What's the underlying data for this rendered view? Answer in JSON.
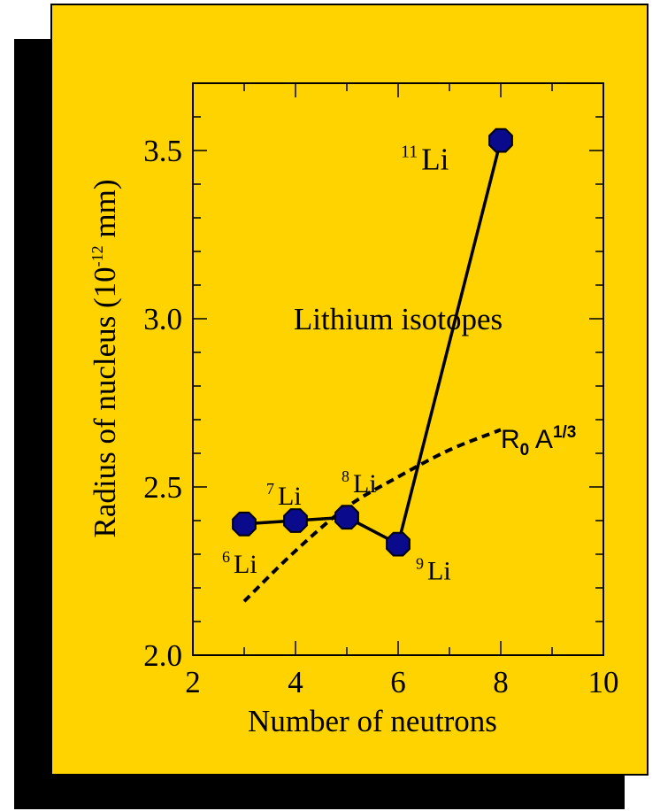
{
  "colors": {
    "background": "#ffd300",
    "marker": "#0a0a8c",
    "line": "#000000",
    "shadow": "#000000"
  },
  "chart_data": {
    "type": "line",
    "title": "Lithium isotopes",
    "xlabel": "Number of neutrons",
    "ylabel": "Radius of nucleus (10",
    "ylabel_exp": "-12",
    "ylabel_unit": " mm)",
    "xlim": [
      2,
      10
    ],
    "ylim": [
      2.0,
      3.7
    ],
    "x_ticks": [
      "2",
      "4",
      "6",
      "8",
      "10"
    ],
    "y_ticks": [
      "2.0",
      "2.5",
      "3.0",
      "3.5"
    ],
    "series": [
      {
        "style": "solid-with-markers",
        "x": [
          3,
          4,
          5,
          6,
          8
        ],
        "values": [
          2.39,
          2.4,
          2.41,
          2.33,
          3.53
        ],
        "point_labels": [
          {
            "mass": "6",
            "element": "Li"
          },
          {
            "mass": "7",
            "element": "Li"
          },
          {
            "mass": "8",
            "element": "Li"
          },
          {
            "mass": "9",
            "element": "Li"
          },
          {
            "mass": "11",
            "element": "Li"
          }
        ]
      },
      {
        "name": "R0 A1/3",
        "style": "dashed",
        "x": [
          3,
          4,
          5,
          6,
          7,
          8
        ],
        "values": [
          2.16,
          2.31,
          2.44,
          2.53,
          2.61,
          2.67
        ]
      }
    ],
    "curve_label": {
      "base": "R",
      "base_sub": "0",
      "term": " A",
      "exponent": "1/3"
    }
  }
}
